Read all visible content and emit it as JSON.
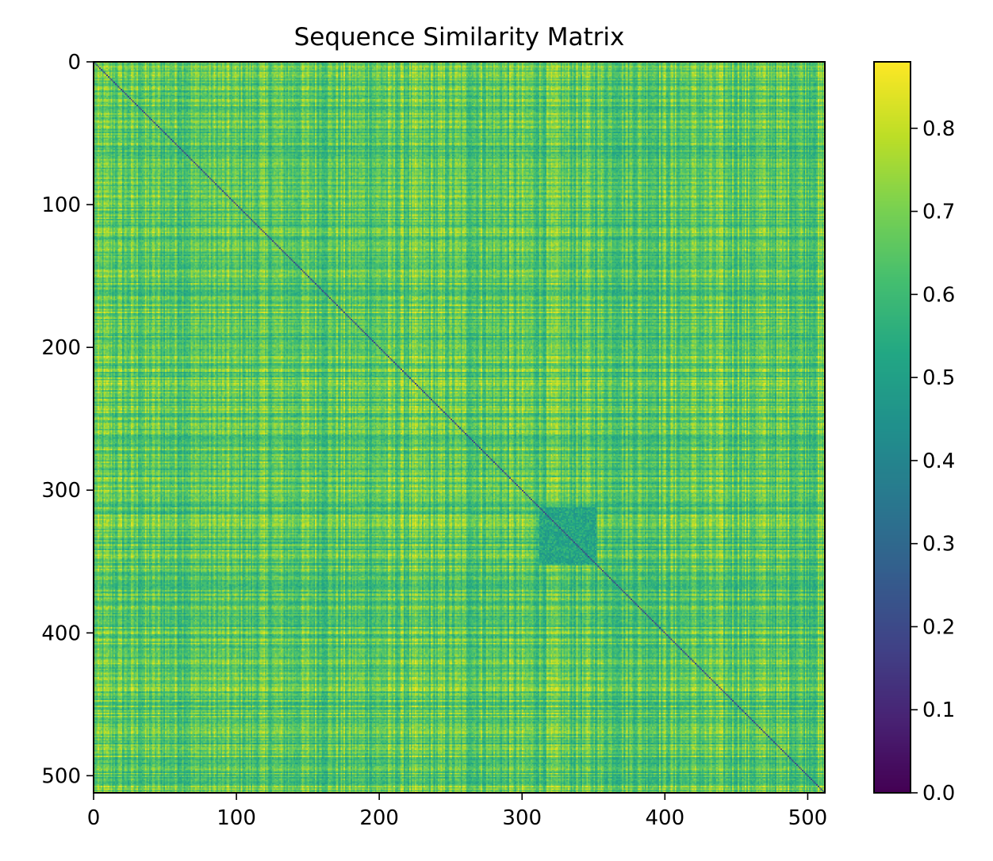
{
  "chart_data": {
    "type": "heatmap",
    "title": "Sequence Similarity Matrix",
    "xlabel": "",
    "ylabel": "",
    "size": 512,
    "xlim": [
      0,
      512
    ],
    "ylim": [
      512,
      0
    ],
    "x_ticks": [
      0,
      100,
      200,
      300,
      400,
      500
    ],
    "y_ticks": [
      0,
      100,
      200,
      300,
      400,
      500
    ],
    "colormap": "viridis",
    "colorbar": {
      "vmin": 0.0,
      "vmax": 0.88,
      "ticks": [
        0.0,
        0.1,
        0.2,
        0.3,
        0.4,
        0.5,
        0.6,
        0.7,
        0.8
      ]
    },
    "diagonal_value": 0.2,
    "typical_value_range": [
      0.5,
      0.85
    ],
    "highlighted_block": {
      "start": 312,
      "end": 352,
      "value_range": [
        0.45,
        0.6
      ]
    },
    "grid": false,
    "legend": "none"
  }
}
